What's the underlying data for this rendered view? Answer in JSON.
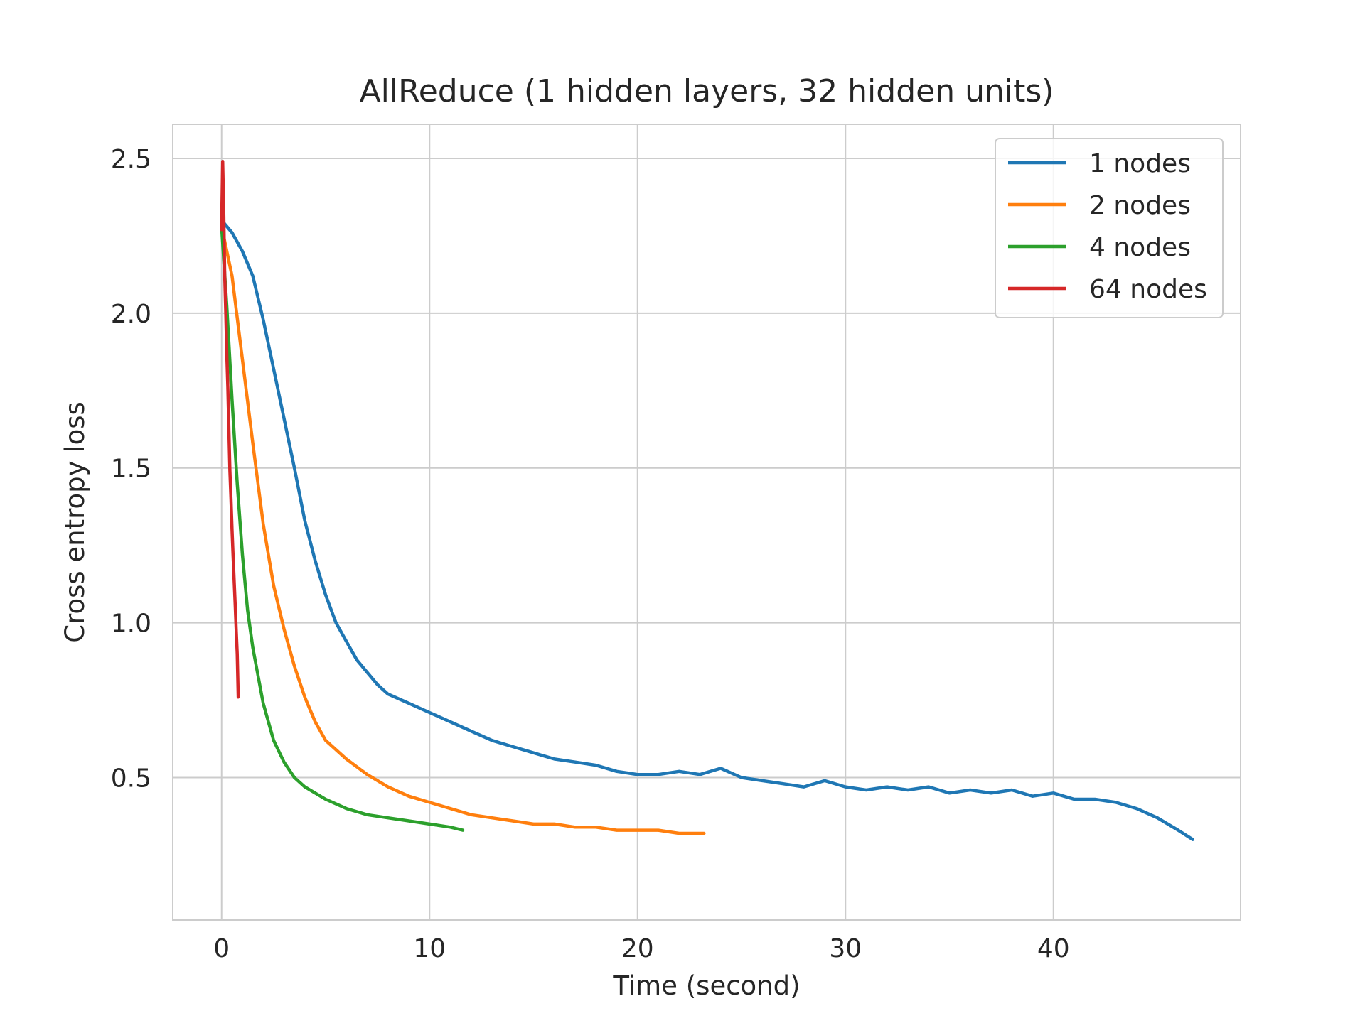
{
  "chart_data": {
    "type": "line",
    "title": "AllReduce (1 hidden layers, 32 hidden units)",
    "xlabel": "Time (second)",
    "ylabel": "Cross entropy loss",
    "xlim": [
      -2.35,
      49.0
    ],
    "ylim": [
      0.04,
      2.61
    ],
    "xticks": [
      0,
      10,
      20,
      30,
      40
    ],
    "xtick_labels": [
      "0",
      "10",
      "20",
      "30",
      "40"
    ],
    "yticks": [
      0.5,
      1.0,
      1.5,
      2.0,
      2.5
    ],
    "ytick_labels": [
      "0.5",
      "1.0",
      "1.5",
      "2.0",
      "2.5"
    ],
    "grid": true,
    "legend_position": "top-right",
    "series": [
      {
        "name": "1 nodes",
        "color": "#1f77b4",
        "x": [
          0,
          0.5,
          1,
          1.5,
          2,
          2.5,
          3,
          3.5,
          4,
          4.5,
          5,
          5.5,
          6,
          6.5,
          7,
          7.5,
          8,
          9,
          10,
          11,
          12,
          13,
          14,
          15,
          16,
          17,
          18,
          19,
          20,
          21,
          22,
          23,
          24,
          25,
          26,
          27,
          28,
          29,
          30,
          31,
          32,
          33,
          34,
          35,
          36,
          37,
          38,
          39,
          40,
          41,
          42,
          43,
          44,
          45,
          46,
          46.7
        ],
        "y": [
          2.3,
          2.26,
          2.2,
          2.12,
          1.98,
          1.82,
          1.66,
          1.5,
          1.33,
          1.2,
          1.09,
          1.0,
          0.94,
          0.88,
          0.84,
          0.8,
          0.77,
          0.74,
          0.71,
          0.68,
          0.65,
          0.62,
          0.6,
          0.58,
          0.56,
          0.55,
          0.54,
          0.52,
          0.51,
          0.51,
          0.52,
          0.51,
          0.53,
          0.5,
          0.49,
          0.48,
          0.47,
          0.49,
          0.47,
          0.46,
          0.47,
          0.46,
          0.47,
          0.45,
          0.46,
          0.45,
          0.46,
          0.44,
          0.45,
          0.43,
          0.43,
          0.42,
          0.4,
          0.37,
          0.33,
          0.3
        ]
      },
      {
        "name": "2 nodes",
        "color": "#ff7f0e",
        "x": [
          0,
          0.5,
          1,
          1.5,
          2,
          2.5,
          3,
          3.5,
          4,
          4.5,
          5,
          6,
          7,
          8,
          9,
          10,
          11,
          12,
          13,
          14,
          15,
          16,
          17,
          18,
          19,
          20,
          21,
          22,
          23.2
        ],
        "y": [
          2.28,
          2.12,
          1.85,
          1.58,
          1.32,
          1.12,
          0.98,
          0.86,
          0.76,
          0.68,
          0.62,
          0.56,
          0.51,
          0.47,
          0.44,
          0.42,
          0.4,
          0.38,
          0.37,
          0.36,
          0.35,
          0.35,
          0.34,
          0.34,
          0.33,
          0.33,
          0.33,
          0.32,
          0.32
        ]
      },
      {
        "name": "4 nodes",
        "color": "#2ca02c",
        "x": [
          0,
          0.25,
          0.5,
          0.75,
          1,
          1.25,
          1.5,
          2,
          2.5,
          3,
          3.5,
          4,
          5,
          6,
          7,
          8,
          9,
          10,
          11,
          11.6
        ],
        "y": [
          2.28,
          2.02,
          1.72,
          1.45,
          1.22,
          1.04,
          0.92,
          0.74,
          0.62,
          0.55,
          0.5,
          0.47,
          0.43,
          0.4,
          0.38,
          0.37,
          0.36,
          0.35,
          0.34,
          0.33
        ]
      },
      {
        "name": "64 nodes",
        "color": "#d62728",
        "x": [
          0,
          0.05,
          0.1,
          0.15,
          0.2,
          0.25,
          0.3,
          0.35,
          0.4,
          0.45,
          0.5,
          0.55,
          0.6,
          0.65,
          0.7,
          0.75,
          0.8
        ],
        "y": [
          2.27,
          2.49,
          2.33,
          2.12,
          2.0,
          1.86,
          1.76,
          1.62,
          1.49,
          1.4,
          1.3,
          1.22,
          1.14,
          1.06,
          0.98,
          0.9,
          0.76
        ]
      }
    ]
  }
}
